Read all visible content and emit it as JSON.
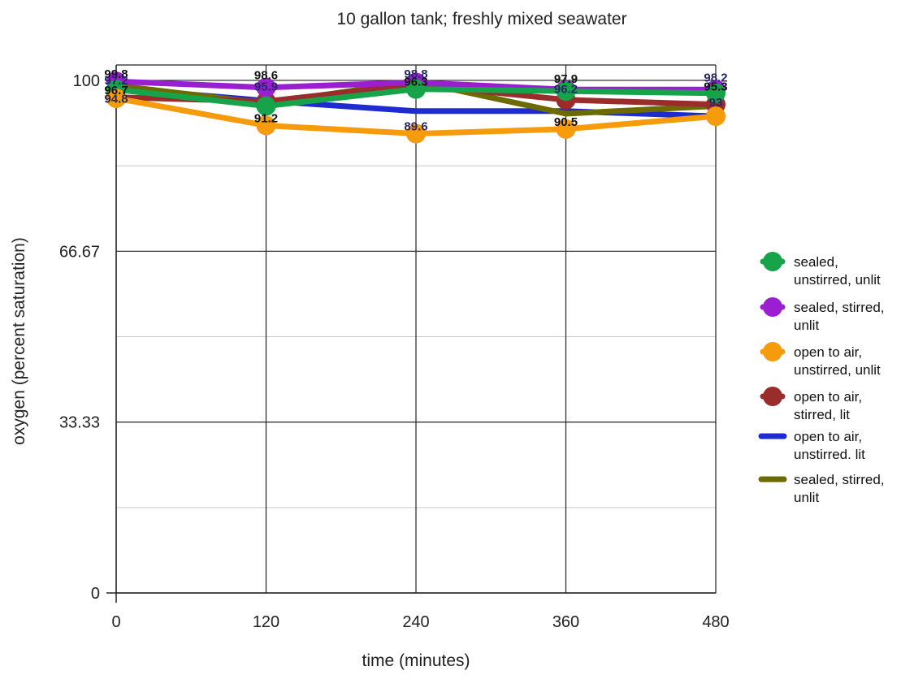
{
  "chart_data": {
    "type": "line",
    "title": "10 gallon tank; freshly mixed seawater",
    "xlabel": "time (minutes)",
    "ylabel": "oxygen (percent saturation)",
    "x": [
      0,
      120,
      240,
      360,
      480
    ],
    "x_tick_labels": [
      "0",
      "120",
      "240",
      "360",
      "480"
    ],
    "y_tick_labels": [
      "0",
      "33.33",
      "66.67",
      "100"
    ],
    "ylim": [
      0,
      103
    ],
    "xlim": [
      0,
      480
    ],
    "grid": true,
    "legend_position": "right",
    "series": [
      {
        "name": "sealed, unstirred, unlit",
        "color": "#16a34a",
        "marker": true,
        "values": [
          98.2,
          95.0,
          98.3,
          97.9,
          97.5
        ]
      },
      {
        "name": "sealed, stirred, unlit",
        "color": "#9b1fd1",
        "marker": true,
        "values": [
          99.8,
          98.6,
          99.6,
          98.2,
          98.2
        ]
      },
      {
        "name": "open to air, unstirred, unlit",
        "color": "#f59b0c",
        "marker": true,
        "values": [
          96.5,
          91.2,
          89.6,
          90.5,
          93.0
        ]
      },
      {
        "name": "open to air, stirred, lit",
        "color": "#9b2c2c",
        "marker": true,
        "values": [
          96.7,
          95.9,
          99.2,
          96.2,
          95.3
        ]
      },
      {
        "name": "open to air, unstirred. lit",
        "color": "#1d2bd0",
        "marker": false,
        "values": [
          98.5,
          96.0,
          94.0,
          94.0,
          93.0
        ]
      },
      {
        "name": "sealed, stirred, unlit",
        "color": "#6b6b00",
        "marker": false,
        "values": [
          99.0,
          95.5,
          99.8,
          93.5,
          95.0
        ]
      }
    ],
    "data_labels": [
      {
        "x": 0,
        "y": 99.8,
        "text": "99.8"
      },
      {
        "x": 0,
        "y": 98.6,
        "text": "97.2"
      },
      {
        "x": 0,
        "y": 96.7,
        "text": "96.7"
      },
      {
        "x": 0,
        "y": 95.0,
        "text": "94.8"
      },
      {
        "x": 120,
        "y": 99.6,
        "text": "98.6"
      },
      {
        "x": 120,
        "y": 97.4,
        "text": "95.9"
      },
      {
        "x": 120,
        "y": 91.2,
        "text": "91.2"
      },
      {
        "x": 240,
        "y": 99.8,
        "text": "98.8"
      },
      {
        "x": 240,
        "y": 98.3,
        "text": "96.3"
      },
      {
        "x": 240,
        "y": 89.6,
        "text": "89.6"
      },
      {
        "x": 360,
        "y": 98.9,
        "text": "97.9"
      },
      {
        "x": 360,
        "y": 96.9,
        "text": "96.2"
      },
      {
        "x": 360,
        "y": 90.5,
        "text": "90.5"
      },
      {
        "x": 480,
        "y": 99.1,
        "text": "98.2"
      },
      {
        "x": 480,
        "y": 97.4,
        "text": "95.3"
      },
      {
        "x": 480,
        "y": 94.3,
        "text": "93"
      }
    ]
  }
}
